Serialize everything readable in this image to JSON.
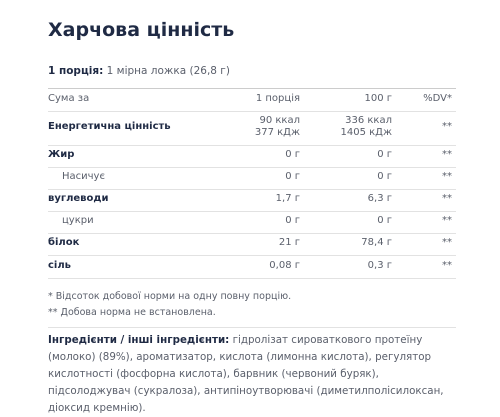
{
  "title": "Харчова цінність",
  "serving": {
    "label": "1 порція:",
    "text": "1 мірна ложка (26,8 г)"
  },
  "table": {
    "header": [
      "Сума за",
      "1 порція",
      "100 г",
      "%DV*"
    ],
    "rows": [
      [
        "Енергетична цінність",
        [
          "90 ккал",
          "377 кДж"
        ],
        [
          "336 ккал",
          "1405 кДж"
        ],
        "**"
      ],
      [
        "Жир",
        "0 г",
        "0 г",
        "**"
      ],
      [
        "Насичує",
        "0 г",
        "0 г",
        "**"
      ],
      [
        "вуглеводи",
        "1,7 г",
        "6,3 г",
        "**"
      ],
      [
        "цукри",
        "0 г",
        "0 г",
        "**"
      ],
      [
        "білок",
        "21 г",
        "78,4 г",
        "**"
      ],
      [
        "сіль",
        "0,08 г",
        "0,3 г",
        "**"
      ]
    ]
  },
  "footnotes": [
    "* Відсоток добової норми на одну повну порцію.",
    "** Добова норма не встановлена."
  ],
  "ingredients": {
    "label": "Інгредієнти / інші інгредієнти:",
    "text": "гідролізат сироваткового протеїну (молоко) (89%), ароматизатор, кислота (лимонна кислота), регулятор кислотності (фосфорна кислота), барвник (червоний буряк), підсолоджувач (сукралоза), антипіноутворювачі (диметилполісилоксан, діоксид кремнію)."
  }
}
